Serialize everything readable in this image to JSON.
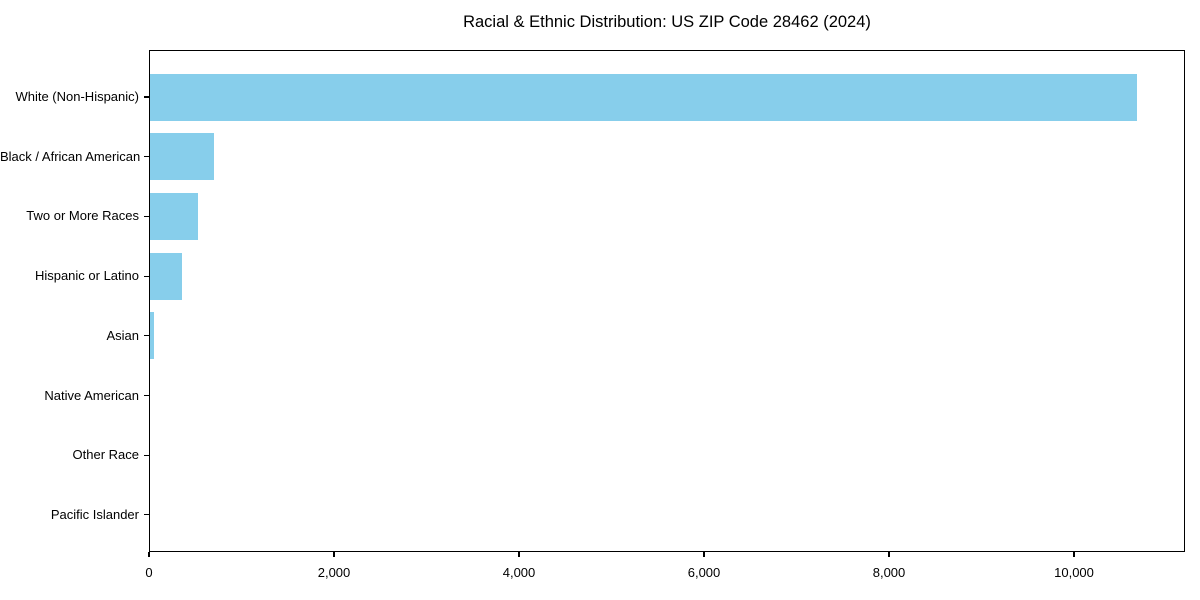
{
  "title": "Racial & Ethnic Distribution: US ZIP Code 28462 (2024)",
  "colors": {
    "bar": "#87CEEB",
    "axis": "#000000",
    "text": "#000000",
    "background": "#FFFFFF"
  },
  "chart_data": {
    "type": "bar",
    "orientation": "horizontal",
    "title": "Racial & Ethnic Distribution: US ZIP Code 28462 (2024)",
    "categories": [
      "White (Non-Hispanic)",
      "Black / African American",
      "Two or More Races",
      "Hispanic or Latino",
      "Asian",
      "Native American",
      "Other Race",
      "Pacific Islander"
    ],
    "values": [
      10670,
      695,
      520,
      345,
      45,
      0,
      0,
      0
    ],
    "bar_color": "#87CEEB",
    "xlabel": "",
    "ylabel": "",
    "xlim": [
      0,
      11200
    ],
    "xticks": [
      0,
      2000,
      4000,
      6000,
      8000,
      10000
    ],
    "xtick_labels": [
      "0",
      "2,000",
      "4,000",
      "6,000",
      "8,000",
      "10,000"
    ],
    "grid": false,
    "legend": null
  }
}
